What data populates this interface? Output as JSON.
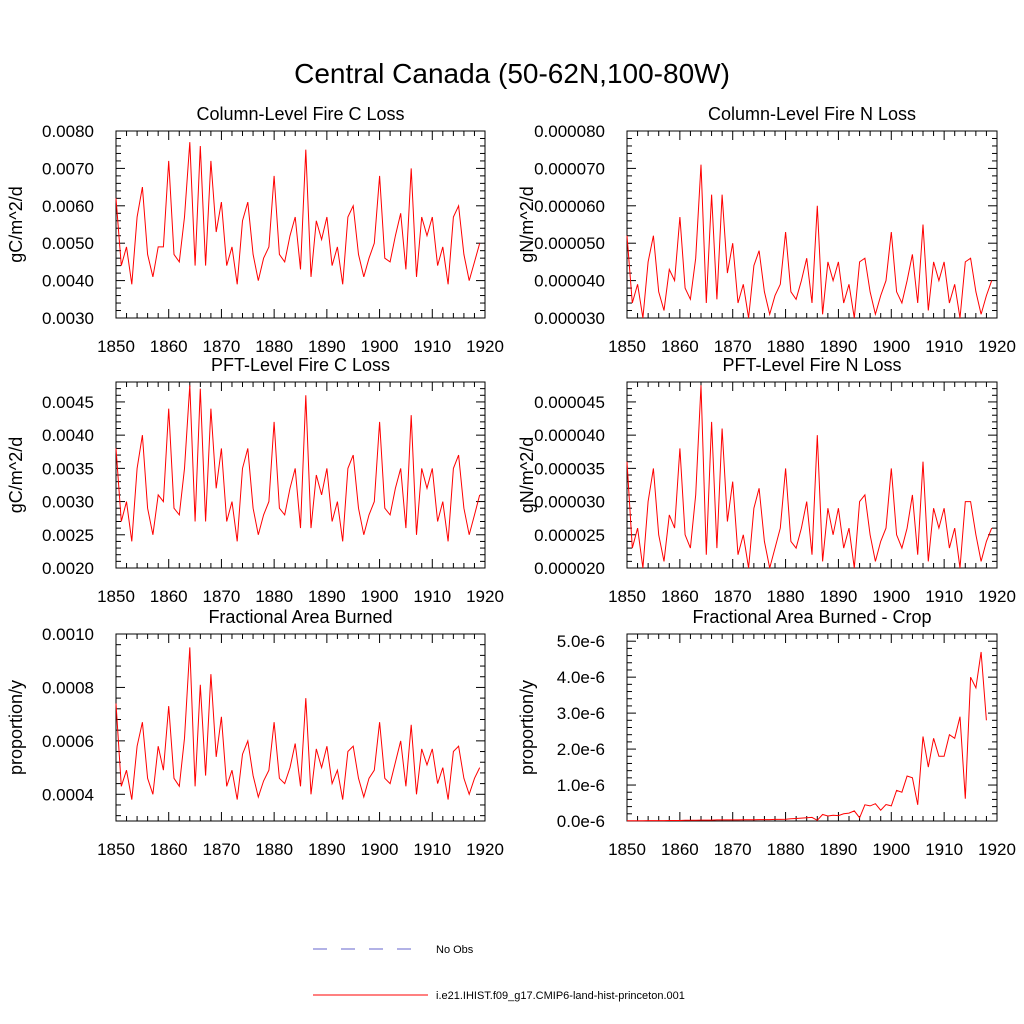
{
  "figure": {
    "title": "Central Canada (50-62N,100-80W)",
    "legend": [
      {
        "label": "No Obs",
        "color": "#6666cc",
        "style": "dashed"
      },
      {
        "label": "i.e21.IHIST.f09_g17.CMIP6-land-hist-princeton.001",
        "color": "#ff0000",
        "style": "solid"
      }
    ]
  },
  "chart_data": [
    {
      "type": "line",
      "title": "Column-Level Fire C Loss",
      "ylabel": "gC/m^2/d",
      "xlim": [
        1850,
        1920
      ],
      "ylim": [
        0.003,
        0.008
      ],
      "xticks": [
        1850,
        1860,
        1870,
        1880,
        1890,
        1900,
        1910,
        1920
      ],
      "xtick_labels": [
        "1850",
        "1860",
        "1870",
        "1880",
        "1890",
        "1900",
        "1910",
        "1920"
      ],
      "yticks": [
        0.003,
        0.004,
        0.005,
        0.006,
        0.007,
        0.008
      ],
      "ytick_labels": [
        "0.0030",
        "0.0040",
        "0.0050",
        "0.0060",
        "0.0070",
        "0.0080"
      ],
      "grid": false,
      "series": [
        {
          "color": "#ff0000",
          "x_start": 1850,
          "x_step": 1,
          "values": [
            0.0062,
            0.0044,
            0.0049,
            0.0039,
            0.0057,
            0.0065,
            0.0047,
            0.0041,
            0.0049,
            0.0049,
            0.0072,
            0.0047,
            0.0045,
            0.0057,
            0.0077,
            0.0044,
            0.0076,
            0.0044,
            0.0072,
            0.0053,
            0.0061,
            0.0044,
            0.0049,
            0.0039,
            0.0056,
            0.0061,
            0.0047,
            0.004,
            0.0046,
            0.0049,
            0.0068,
            0.0047,
            0.0045,
            0.0052,
            0.0057,
            0.0043,
            0.0075,
            0.0041,
            0.0056,
            0.0051,
            0.0057,
            0.0044,
            0.0049,
            0.0039,
            0.0057,
            0.006,
            0.0047,
            0.0041,
            0.0046,
            0.005,
            0.0068,
            0.0046,
            0.0045,
            0.0052,
            0.0058,
            0.0043,
            0.007,
            0.0041,
            0.0057,
            0.0052,
            0.0057,
            0.0044,
            0.0049,
            0.0039,
            0.0057,
            0.006,
            0.0047,
            0.004,
            0.0045,
            0.005
          ]
        }
      ]
    },
    {
      "type": "line",
      "title": "Column-Level Fire N Loss",
      "ylabel": "gN/m^2/d",
      "xlim": [
        1850,
        1920
      ],
      "ylim": [
        3e-05,
        8e-05
      ],
      "xticks": [
        1850,
        1860,
        1870,
        1880,
        1890,
        1900,
        1910,
        1920
      ],
      "xtick_labels": [
        "1850",
        "1860",
        "1870",
        "1880",
        "1890",
        "1900",
        "1910",
        "1920"
      ],
      "yticks": [
        3e-05,
        4e-05,
        5e-05,
        6e-05,
        7e-05,
        8e-05
      ],
      "ytick_labels": [
        "0.000030",
        "0.000040",
        "0.000050",
        "0.000060",
        "0.000070",
        "0.000080"
      ],
      "grid": false,
      "series": [
        {
          "color": "#ff0000",
          "x_start": 1850,
          "x_step": 1,
          "values": [
            5.2e-05,
            3.4e-05,
            3.9e-05,
            3e-05,
            4.5e-05,
            5.2e-05,
            3.7e-05,
            3.2e-05,
            4.3e-05,
            4e-05,
            5.7e-05,
            3.8e-05,
            3.5e-05,
            4.6e-05,
            7.1e-05,
            3.4e-05,
            6.3e-05,
            3.5e-05,
            6.3e-05,
            4.2e-05,
            5e-05,
            3.4e-05,
            3.9e-05,
            3e-05,
            4.4e-05,
            4.8e-05,
            3.7e-05,
            3.1e-05,
            3.6e-05,
            3.9e-05,
            5.3e-05,
            3.7e-05,
            3.5e-05,
            4e-05,
            4.6e-05,
            3.4e-05,
            6e-05,
            3.1e-05,
            4.5e-05,
            4e-05,
            4.5e-05,
            3.4e-05,
            3.9e-05,
            3e-05,
            4.5e-05,
            4.6e-05,
            3.7e-05,
            3.1e-05,
            3.6e-05,
            4e-05,
            5.3e-05,
            3.7e-05,
            3.4e-05,
            4e-05,
            4.7e-05,
            3.4e-05,
            5.5e-05,
            3.2e-05,
            4.5e-05,
            4e-05,
            4.5e-05,
            3.4e-05,
            3.9e-05,
            3e-05,
            4.5e-05,
            4.6e-05,
            3.7e-05,
            3.1e-05,
            3.6e-05,
            4e-05
          ]
        }
      ]
    },
    {
      "type": "line",
      "title": "PFT-Level Fire C Loss",
      "ylabel": "gC/m^2/d",
      "xlim": [
        1850,
        1920
      ],
      "ylim": [
        0.002,
        0.0048
      ],
      "xticks": [
        1850,
        1860,
        1870,
        1880,
        1890,
        1900,
        1910,
        1920
      ],
      "xtick_labels": [
        "1850",
        "1860",
        "1870",
        "1880",
        "1890",
        "1900",
        "1910",
        "1920"
      ],
      "yticks": [
        0.002,
        0.0025,
        0.003,
        0.0035,
        0.004,
        0.0045
      ],
      "ytick_labels": [
        "0.0020",
        "0.0025",
        "0.0030",
        "0.0035",
        "0.0040",
        "0.0045"
      ],
      "grid": false,
      "series": [
        {
          "color": "#ff0000",
          "x_start": 1850,
          "x_step": 1,
          "values": [
            0.0038,
            0.0027,
            0.003,
            0.0024,
            0.0035,
            0.004,
            0.0029,
            0.0025,
            0.0031,
            0.003,
            0.0044,
            0.0029,
            0.0028,
            0.0035,
            0.00475,
            0.0027,
            0.0047,
            0.0027,
            0.0044,
            0.0032,
            0.0038,
            0.0027,
            0.003,
            0.0024,
            0.0035,
            0.0038,
            0.0029,
            0.0025,
            0.0028,
            0.003,
            0.0042,
            0.0029,
            0.0028,
            0.0032,
            0.0035,
            0.0026,
            0.0046,
            0.0026,
            0.0034,
            0.0031,
            0.0035,
            0.0027,
            0.003,
            0.0024,
            0.0035,
            0.0037,
            0.0029,
            0.0025,
            0.0028,
            0.003,
            0.0042,
            0.0029,
            0.0028,
            0.0032,
            0.0035,
            0.0026,
            0.0043,
            0.0025,
            0.0035,
            0.0032,
            0.0035,
            0.0027,
            0.003,
            0.0024,
            0.0035,
            0.0037,
            0.0029,
            0.0025,
            0.0028,
            0.0031
          ]
        }
      ]
    },
    {
      "type": "line",
      "title": "PFT-Level Fire N Loss",
      "ylabel": "gN/m^2/d",
      "xlim": [
        1850,
        1920
      ],
      "ylim": [
        2e-05,
        4.8e-05
      ],
      "xticks": [
        1850,
        1860,
        1870,
        1880,
        1890,
        1900,
        1910,
        1920
      ],
      "xtick_labels": [
        "1850",
        "1860",
        "1870",
        "1880",
        "1890",
        "1900",
        "1910",
        "1920"
      ],
      "yticks": [
        2e-05,
        2.5e-05,
        3e-05,
        3.5e-05,
        4e-05,
        4.5e-05
      ],
      "ytick_labels": [
        "0.000020",
        "0.000025",
        "0.000030",
        "0.000035",
        "0.000040",
        "0.000045"
      ],
      "grid": false,
      "series": [
        {
          "color": "#ff0000",
          "x_start": 1850,
          "x_step": 1,
          "values": [
            3.6e-05,
            2.3e-05,
            2.6e-05,
            2e-05,
            3e-05,
            3.5e-05,
            2.5e-05,
            2.1e-05,
            2.8e-05,
            2.6e-05,
            3.8e-05,
            2.5e-05,
            2.3e-05,
            3.1e-05,
            4.75e-05,
            2.2e-05,
            4.2e-05,
            2.3e-05,
            4.1e-05,
            2.7e-05,
            3.3e-05,
            2.2e-05,
            2.5e-05,
            2e-05,
            2.9e-05,
            3.2e-05,
            2.4e-05,
            2e-05,
            2.3e-05,
            2.6e-05,
            3.5e-05,
            2.4e-05,
            2.3e-05,
            2.6e-05,
            3e-05,
            2.2e-05,
            4e-05,
            2.1e-05,
            2.9e-05,
            2.5e-05,
            2.9e-05,
            2.3e-05,
            2.6e-05,
            2e-05,
            3e-05,
            3.1e-05,
            2.5e-05,
            2.1e-05,
            2.4e-05,
            2.6e-05,
            3.5e-05,
            2.5e-05,
            2.3e-05,
            2.6e-05,
            3.1e-05,
            2.2e-05,
            3.6e-05,
            2.1e-05,
            2.9e-05,
            2.6e-05,
            2.9e-05,
            2.3e-05,
            2.6e-05,
            2e-05,
            3e-05,
            3e-05,
            2.5e-05,
            2.1e-05,
            2.4e-05,
            2.6e-05
          ]
        }
      ]
    },
    {
      "type": "line",
      "title": "Fractional Area Burned",
      "ylabel": "proportion/y",
      "xlim": [
        1850,
        1920
      ],
      "ylim": [
        0.0003,
        0.001
      ],
      "xticks": [
        1850,
        1860,
        1870,
        1880,
        1890,
        1900,
        1910,
        1920
      ],
      "xtick_labels": [
        "1850",
        "1860",
        "1870",
        "1880",
        "1890",
        "1900",
        "1910",
        "1920"
      ],
      "yticks": [
        0.0004,
        0.0006,
        0.0008,
        0.001
      ],
      "ytick_labels": [
        "0.0004",
        "0.0006",
        "0.0008",
        "0.0010"
      ],
      "grid": false,
      "series": [
        {
          "color": "#ff0000",
          "x_start": 1850,
          "x_step": 1,
          "values": [
            0.00074,
            0.00043,
            0.00049,
            0.00038,
            0.00058,
            0.00067,
            0.00046,
            0.0004,
            0.00058,
            0.00049,
            0.00073,
            0.00046,
            0.00043,
            0.00061,
            0.00095,
            0.00043,
            0.00081,
            0.00047,
            0.00085,
            0.00054,
            0.00069,
            0.00043,
            0.00049,
            0.00038,
            0.00055,
            0.0006,
            0.00047,
            0.00039,
            0.00045,
            0.00049,
            0.00067,
            0.00046,
            0.00044,
            0.0005,
            0.00059,
            0.00043,
            0.00076,
            0.0004,
            0.00057,
            0.0005,
            0.00058,
            0.00044,
            0.00049,
            0.00038,
            0.00056,
            0.00058,
            0.00046,
            0.00039,
            0.00046,
            0.00049,
            0.00067,
            0.00046,
            0.00044,
            0.00052,
            0.0006,
            0.00043,
            0.00066,
            0.0004,
            0.00057,
            0.00051,
            0.00057,
            0.00044,
            0.0005,
            0.00038,
            0.00056,
            0.00058,
            0.00046,
            0.0004,
            0.00046,
            0.0005
          ]
        }
      ]
    },
    {
      "type": "line",
      "title": "Fractional Area Burned - Crop",
      "ylabel": "proportion/y",
      "xlim": [
        1850,
        1920
      ],
      "ylim": [
        0,
        5.2e-06
      ],
      "xticks": [
        1850,
        1860,
        1870,
        1880,
        1890,
        1900,
        1910,
        1920
      ],
      "xtick_labels": [
        "1850",
        "1860",
        "1870",
        "1880",
        "1890",
        "1900",
        "1910",
        "1920"
      ],
      "yticks": [
        0,
        1e-06,
        2e-06,
        3e-06,
        4e-06,
        5e-06
      ],
      "ytick_labels": [
        "0.0e-6",
        "1.0e-6",
        "2.0e-6",
        "3.0e-6",
        "4.0e-6",
        "5.0e-6"
      ],
      "grid": false,
      "series": [
        {
          "color": "#ff0000",
          "x_start": 1850,
          "x_step": 1,
          "values": [
            5e-09,
            5e-09,
            5e-09,
            5e-09,
            1e-08,
            1e-08,
            1e-08,
            1e-08,
            1.5e-08,
            1.5e-08,
            1.5e-08,
            2e-08,
            2e-08,
            2e-08,
            2.5e-08,
            2.5e-08,
            2.5e-08,
            3e-08,
            3e-08,
            3e-08,
            3e-08,
            3e-08,
            3.5e-08,
            3.5e-08,
            3.5e-08,
            4e-08,
            4e-08,
            4e-08,
            4.5e-08,
            4.5e-08,
            5e-08,
            6e-08,
            7e-08,
            8e-08,
            9e-08,
            1e-07,
            2e-08,
            1.8e-07,
            1.4e-07,
            1.6e-07,
            1.5e-07,
            2e-07,
            2.2e-07,
            2.8e-07,
            9e-08,
            4.5e-07,
            4.2e-07,
            4.8e-07,
            3e-07,
            4.6e-07,
            4.2e-07,
            8.5e-07,
            8e-07,
            1.25e-06,
            1.2e-06,
            4.5e-07,
            2.35e-06,
            1.5e-06,
            2.3e-06,
            1.8e-06,
            1.8e-06,
            2.4e-06,
            2.3e-06,
            2.9e-06,
            6.2e-07,
            4e-06,
            3.7e-06,
            4.7e-06,
            2.8e-06
          ]
        }
      ]
    }
  ]
}
